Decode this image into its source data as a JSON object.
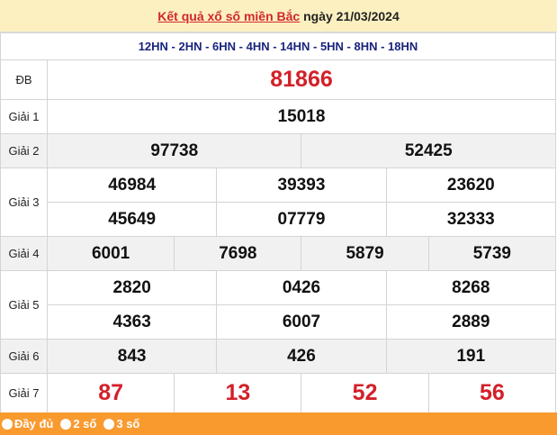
{
  "header": {
    "title_link": "Kết quả xổ số miền Bắc",
    "date_text": " ngày 21/03/2024"
  },
  "codes": "12HN - 2HN - 6HN - 4HN - 14HN - 5HN - 8HN - 18HN",
  "prizes": {
    "db": {
      "label": "ĐB",
      "values": [
        "81866"
      ]
    },
    "g1": {
      "label": "Giải 1",
      "values": [
        "15018"
      ]
    },
    "g2": {
      "label": "Giải 2",
      "values": [
        "97738",
        "52425"
      ]
    },
    "g3": {
      "label": "Giải 3",
      "values": [
        "46984",
        "39393",
        "23620",
        "45649",
        "07779",
        "32333"
      ]
    },
    "g4": {
      "label": "Giải 4",
      "values": [
        "6001",
        "7698",
        "5879",
        "5739"
      ]
    },
    "g5": {
      "label": "Giải 5",
      "values": [
        "2820",
        "0426",
        "8268",
        "4363",
        "6007",
        "2889"
      ]
    },
    "g6": {
      "label": "Giải 6",
      "values": [
        "843",
        "426",
        "191"
      ]
    },
    "g7": {
      "label": "Giải 7",
      "values": [
        "87",
        "13",
        "52",
        "56"
      ]
    }
  },
  "footer": {
    "options": [
      "Đầy đủ",
      "2 số",
      "3 số"
    ]
  },
  "colors": {
    "header_bg": "#fdf0c0",
    "highlight": "#d32029",
    "codes": "#1a237e",
    "footer_bg": "#f99a2f"
  }
}
